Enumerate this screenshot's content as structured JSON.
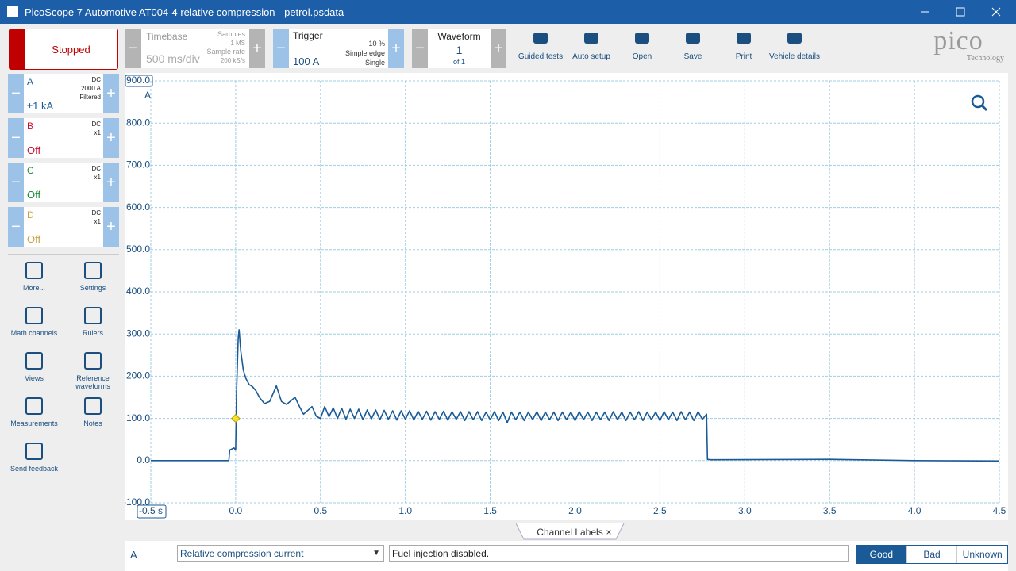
{
  "window": {
    "title": "PicoScope 7 Automotive AT004-4 relative compression - petrol.psdata"
  },
  "toolbar": {
    "run_button": "Stopped",
    "timebase": {
      "label": "Timebase",
      "value": "500 ms/div",
      "samples_label": "Samples",
      "samples": "1 MS",
      "rate_label": "Sample rate",
      "rate": "200 kS/s"
    },
    "trigger": {
      "label": "Trigger",
      "value": "100 A",
      "level": "10 %",
      "mode": "Simple edge",
      "type": "Single"
    },
    "waveform": {
      "label": "Waveform",
      "value": "1",
      "of": "of 1"
    },
    "buttons": [
      "Guided tests",
      "Auto setup",
      "Open",
      "Save",
      "Print",
      "Vehicle details"
    ],
    "logo": "pico",
    "logo_sub": "Technology"
  },
  "channels": [
    {
      "name": "A",
      "coupling": "DC",
      "range": "2000 A",
      "filter": "Filtered",
      "value": "±1 kA",
      "color": "#1a5a96"
    },
    {
      "name": "B",
      "coupling": "DC",
      "range": "x1",
      "value": "Off",
      "color": "#c8102e"
    },
    {
      "name": "C",
      "coupling": "DC",
      "range": "x1",
      "value": "Off",
      "color": "#1e8a3a"
    },
    {
      "name": "D",
      "coupling": "DC",
      "range": "x1",
      "value": "Off",
      "color": "#c8a040"
    }
  ],
  "tools": [
    "More...",
    "Settings",
    "Math channels",
    "Rulers",
    "Views",
    "Reference waveforms",
    "Measurements",
    "Notes",
    "Send feedback"
  ],
  "chart_data": {
    "type": "line",
    "y_label": "A",
    "color": "#1a5a96",
    "grid": true,
    "xlim": [
      -0.5,
      4.5
    ],
    "ylim": [
      -100,
      900
    ],
    "xticks": [
      {
        "value": -0.5,
        "label": "-0.5 s"
      },
      {
        "value": 0,
        "label": "0.0"
      },
      {
        "value": 0.5,
        "label": "0.5"
      },
      {
        "value": 1,
        "label": "1.0"
      },
      {
        "value": 1.5,
        "label": "1.5"
      },
      {
        "value": 2,
        "label": "2.0"
      },
      {
        "value": 2.5,
        "label": "2.5"
      },
      {
        "value": 3,
        "label": "3.0"
      },
      {
        "value": 3.5,
        "label": "3.5"
      },
      {
        "value": 4,
        "label": "4.0"
      },
      {
        "value": 4.5,
        "label": "4.5"
      }
    ],
    "yticks": [
      {
        "value": 900,
        "label": "900.0"
      },
      {
        "value": 800,
        "label": "800.0"
      },
      {
        "value": 700,
        "label": "700.0"
      },
      {
        "value": 600,
        "label": "600.0"
      },
      {
        "value": 500,
        "label": "500.0"
      },
      {
        "value": 400,
        "label": "400.0"
      },
      {
        "value": 300,
        "label": "300.0"
      },
      {
        "value": 200,
        "label": "200.0"
      },
      {
        "value": 100,
        "label": "100.0"
      },
      {
        "value": 0,
        "label": "0.0"
      },
      {
        "value": -100,
        "label": "-100.0"
      }
    ],
    "trigger_point": [
      0,
      100
    ],
    "x": [
      -0.5,
      -0.04,
      -0.035,
      -0.01,
      0.0,
      0.005,
      0.015,
      0.02,
      0.03,
      0.045,
      0.06,
      0.08,
      0.1,
      0.12,
      0.14,
      0.17,
      0.2,
      0.24,
      0.27,
      0.3,
      0.35,
      0.38,
      0.4,
      0.45,
      0.475,
      0.5,
      0.525,
      0.55,
      0.575,
      0.6,
      0.625,
      0.65,
      0.675,
      0.7,
      0.725,
      0.75,
      0.775,
      0.8,
      0.825,
      0.85,
      0.875,
      0.9,
      0.925,
      0.95,
      0.975,
      1.0,
      1.025,
      1.05,
      1.075,
      1.1,
      1.125,
      1.15,
      1.175,
      1.2,
      1.225,
      1.25,
      1.275,
      1.3,
      1.325,
      1.35,
      1.375,
      1.4,
      1.425,
      1.45,
      1.475,
      1.5,
      1.525,
      1.55,
      1.575,
      1.6,
      1.625,
      1.65,
      1.675,
      1.7,
      1.725,
      1.75,
      1.775,
      1.8,
      1.825,
      1.85,
      1.875,
      1.9,
      1.925,
      1.95,
      1.975,
      2.0,
      2.025,
      2.05,
      2.075,
      2.1,
      2.125,
      2.15,
      2.175,
      2.2,
      2.225,
      2.25,
      2.275,
      2.3,
      2.325,
      2.35,
      2.375,
      2.4,
      2.425,
      2.45,
      2.475,
      2.5,
      2.525,
      2.55,
      2.575,
      2.6,
      2.625,
      2.65,
      2.675,
      2.7,
      2.725,
      2.75,
      2.775,
      2.78,
      2.8,
      3.5,
      4.0,
      4.5
    ],
    "values": [
      0,
      0,
      25,
      30,
      25,
      160,
      290,
      310,
      260,
      215,
      195,
      180,
      175,
      165,
      150,
      135,
      140,
      177,
      140,
      133,
      150,
      125,
      110,
      128,
      105,
      100,
      128,
      104,
      125,
      100,
      124,
      98,
      122,
      100,
      122,
      97,
      120,
      99,
      120,
      97,
      119,
      98,
      118,
      96,
      118,
      98,
      118,
      96,
      117,
      98,
      117,
      96,
      116,
      98,
      117,
      96,
      116,
      98,
      116,
      95,
      116,
      97,
      116,
      95,
      115,
      97,
      116,
      95,
      115,
      90,
      115,
      97,
      115,
      95,
      115,
      97,
      116,
      95,
      115,
      97,
      115,
      95,
      115,
      97,
      115,
      95,
      116,
      97,
      115,
      95,
      115,
      97,
      115,
      95,
      116,
      97,
      115,
      95,
      115,
      97,
      116,
      95,
      115,
      97,
      115,
      95,
      116,
      97,
      115,
      95,
      116,
      97,
      115,
      95,
      116,
      98,
      110,
      3,
      2,
      3,
      0,
      -1
    ]
  },
  "bottom": {
    "tab": "Channel Labels",
    "tab_close": "×",
    "channel": "A",
    "dropdown": "Relative compression current",
    "note": "Fuel injection disabled.",
    "rating": [
      "Good",
      "Bad",
      "Unknown"
    ]
  }
}
